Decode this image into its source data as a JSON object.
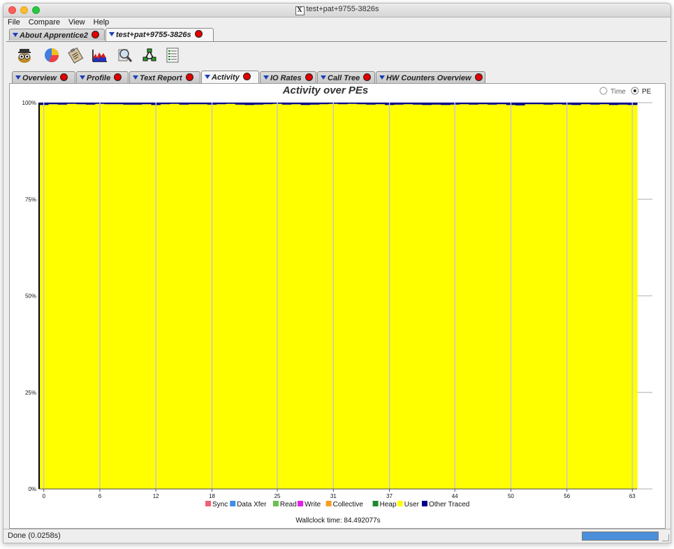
{
  "window": {
    "title": "test+pat+9755-3826s"
  },
  "menu": [
    "File",
    "Compare",
    "View",
    "Help"
  ],
  "doc_tabs": [
    {
      "label": "About Apprentice2",
      "selected": false
    },
    {
      "label": "test+pat+9755-3826s",
      "selected": true
    }
  ],
  "toolbar_icons": [
    "owl-icon",
    "pie-chart-icon",
    "clipboard-icon",
    "histogram-icon",
    "magnifier-icon",
    "call-graph-icon",
    "report-icon"
  ],
  "sub_tabs": [
    {
      "label": "Overview",
      "selected": false
    },
    {
      "label": "Profile",
      "selected": false
    },
    {
      "label": "Text Report",
      "selected": false
    },
    {
      "label": "Activity",
      "selected": true
    },
    {
      "label": "IO Rates",
      "selected": false
    },
    {
      "label": "Call Tree",
      "selected": false
    },
    {
      "label": "HW Counters Overview",
      "selected": false
    }
  ],
  "view_toggle": {
    "options": [
      "Time",
      "PE"
    ],
    "selected": "PE"
  },
  "chart_data": {
    "type": "bar",
    "title": "Activity over PEs",
    "xlabel": "",
    "ylabel": "",
    "ylim": [
      0,
      100
    ],
    "y_tick_labels": [
      "0%",
      "25%",
      "50%",
      "75%",
      "100%"
    ],
    "x_tick_labels": [
      "0",
      "6",
      "12",
      "18",
      "25",
      "31",
      "37",
      "44",
      "50",
      "56",
      "63"
    ],
    "x_tick_values": [
      0,
      6,
      12,
      18,
      25,
      31,
      37,
      44,
      50,
      56,
      63
    ],
    "grid": true,
    "legend_position": "bottom",
    "categories_count": 64,
    "series": [
      {
        "name": "Sync",
        "color": "#f0607a",
        "values": "0 for all PEs"
      },
      {
        "name": "Data Xfer",
        "color": "#3f8fe8",
        "values": "0 for all PEs"
      },
      {
        "name": "Read",
        "color": "#6bbf4e",
        "values": "0 for all PEs"
      },
      {
        "name": "Write",
        "color": "#e020e8",
        "values": "0 for all PEs"
      },
      {
        "name": "Collective",
        "color": "#f5a023",
        "values": "0 for all PEs"
      },
      {
        "name": "Heap",
        "color": "#1f8a2e",
        "values": "0 for all PEs"
      },
      {
        "name": "User",
        "color": "#ffff00",
        "values": [
          99.4,
          99.6,
          99.5,
          99.7,
          99.6,
          99.5,
          99.7,
          99.6,
          99.6,
          99.5,
          99.5,
          99.6,
          99.4,
          99.6,
          99.7,
          99.5,
          99.6,
          99.6,
          99.5,
          99.6,
          99.7,
          99.5,
          99.4,
          99.5,
          99.6,
          99.7,
          99.5,
          99.6,
          99.4,
          99.5,
          99.6,
          99.7,
          99.6,
          99.7,
          99.6,
          99.5,
          99.6,
          99.4,
          99.5,
          99.6,
          99.5,
          99.4,
          99.5,
          99.4,
          99.5,
          99.6,
          99.5,
          99.6,
          99.5,
          99.6,
          99.4,
          99.3,
          99.6,
          99.6,
          99.5,
          99.6,
          99.5,
          99.4,
          99.6,
          99.5,
          99.6,
          99.4,
          99.5,
          99.4
        ]
      },
      {
        "name": "Other Traced",
        "color": "#00008b",
        "values": "remainder to 100%"
      }
    ],
    "wallclock_label": "Wallclock time: 84.492077s"
  },
  "status": {
    "text": "Done (0.0258s)"
  }
}
